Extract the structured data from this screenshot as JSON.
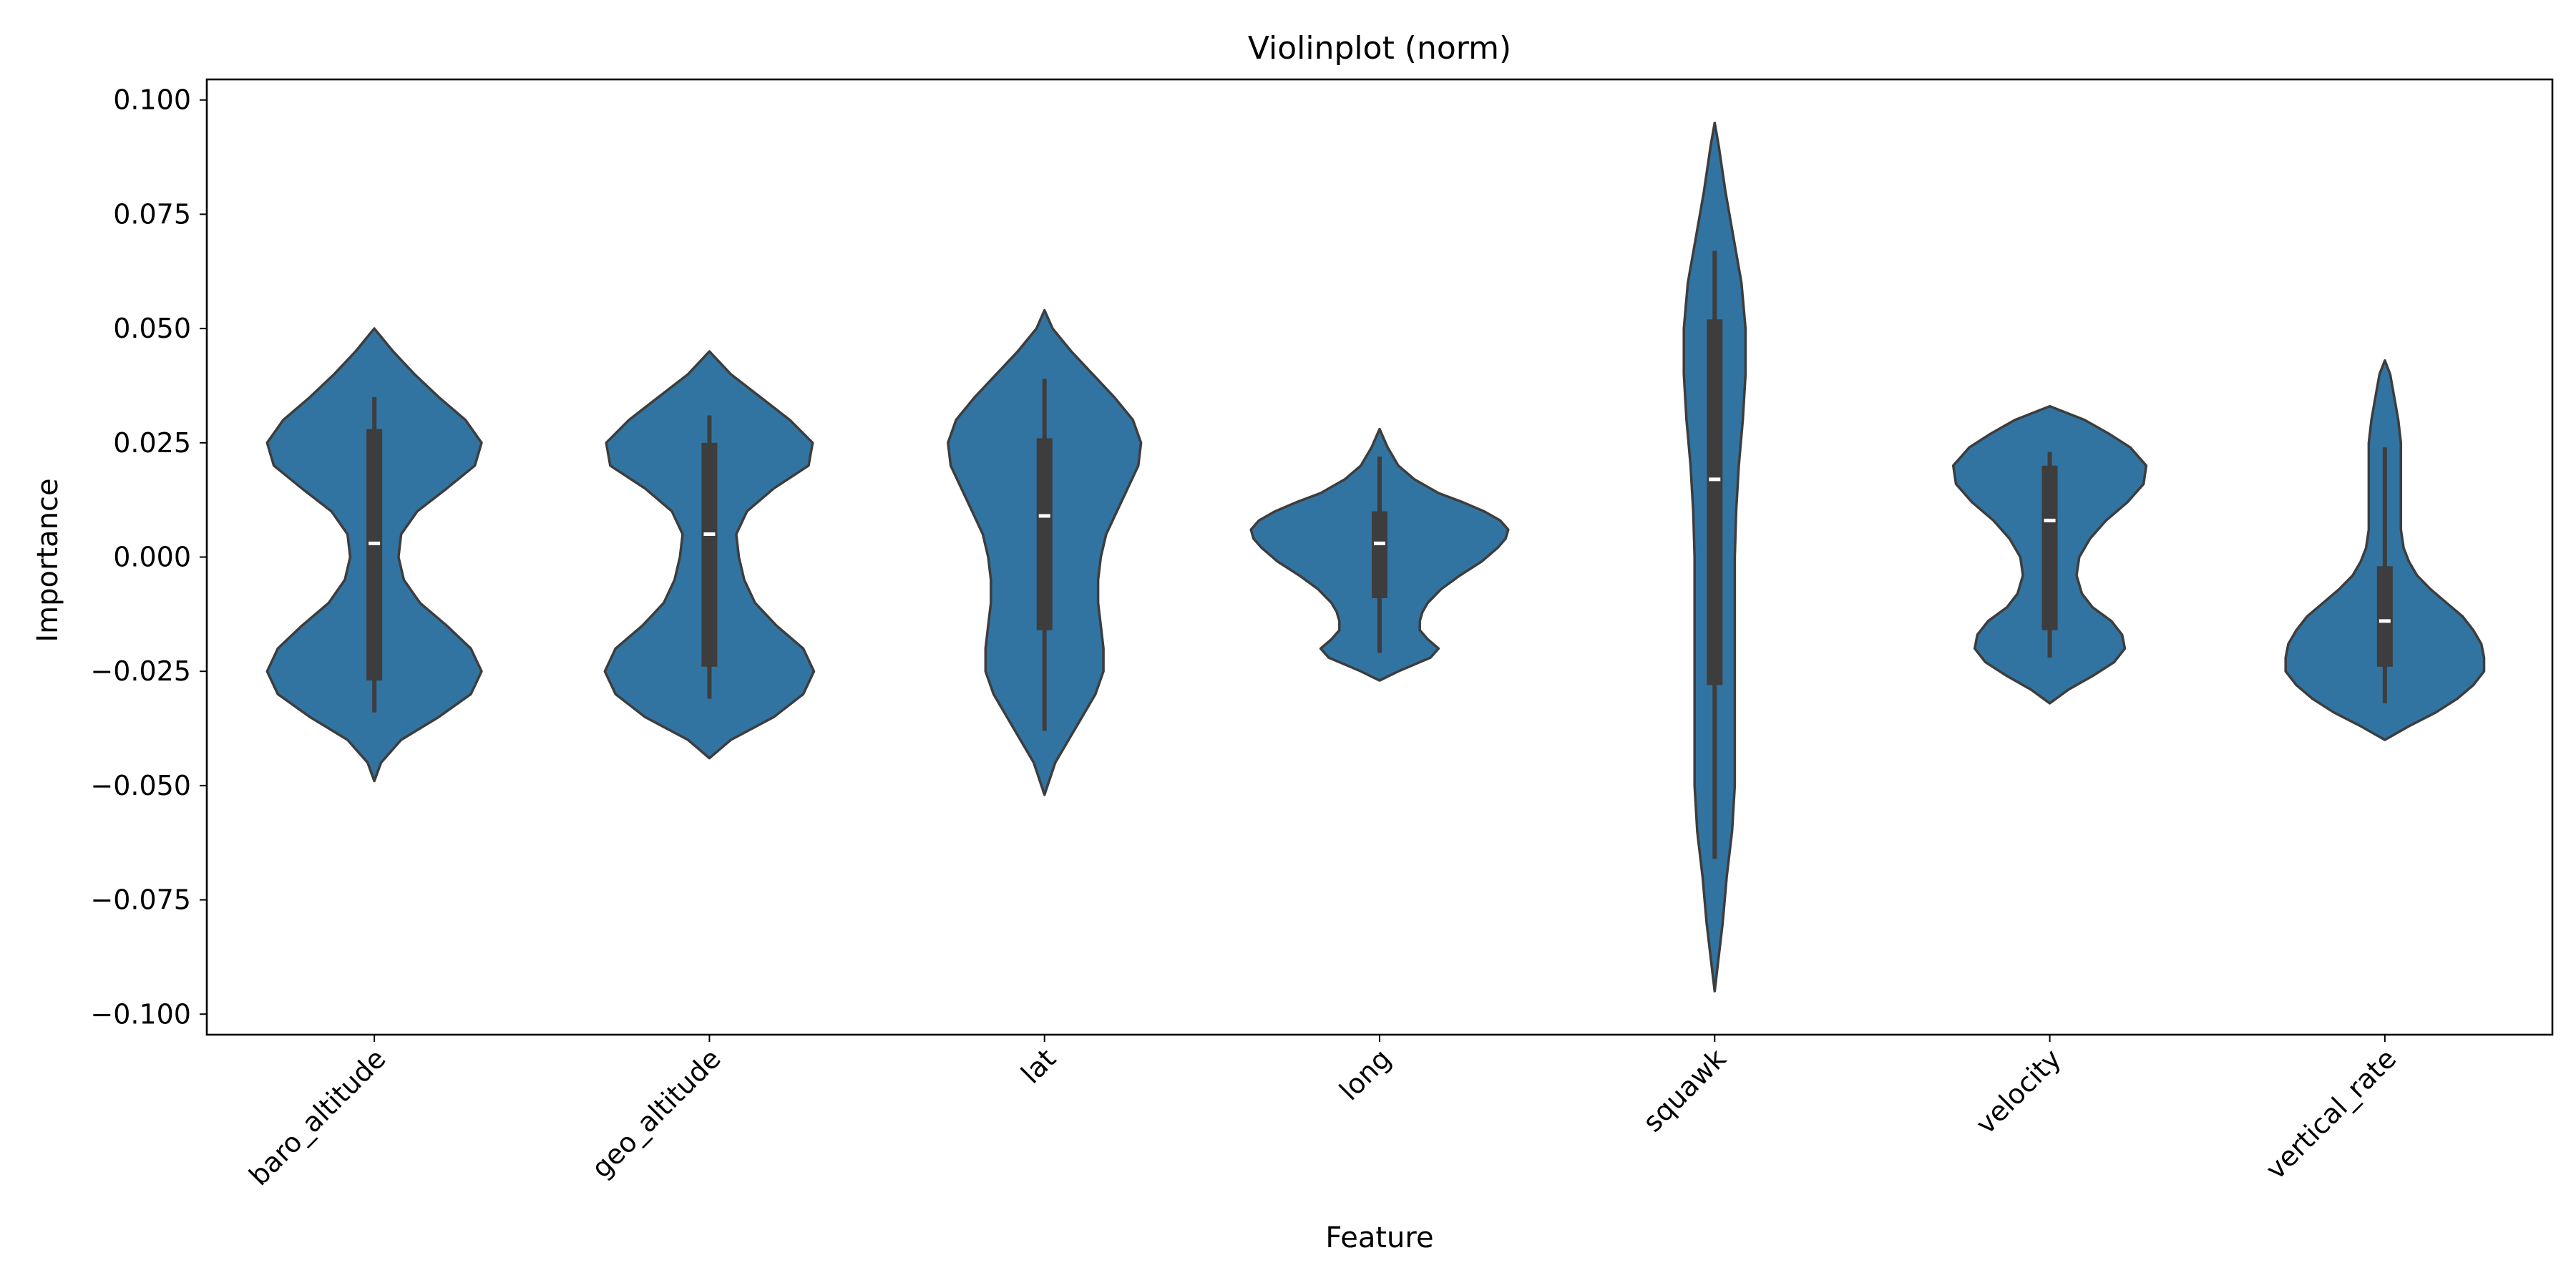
{
  "chart_data": {
    "type": "violin",
    "title": "Violinplot (norm)",
    "xlabel": "Feature",
    "ylabel": "Importance",
    "ylim": [
      -0.1045,
      0.1045
    ],
    "yticks": [
      0.1,
      0.075,
      0.05,
      0.025,
      0.0,
      -0.025,
      -0.05,
      -0.075,
      -0.1
    ],
    "ytick_labels": [
      "0.100",
      "0.075",
      "0.050",
      "0.025",
      "0.000",
      "−0.025",
      "−0.050",
      "−0.075",
      "−0.100"
    ],
    "categories": [
      "baro_altitude",
      "geo_altitude",
      "lat",
      "long",
      "squawk",
      "velocity",
      "vertical_rate"
    ],
    "fill_color": "#3274a1",
    "edge_color": "#3d3d3d",
    "violins": [
      {
        "name": "baro_altitude",
        "median": 0.003,
        "q1": -0.027,
        "q3": 0.028,
        "whisker_low": -0.034,
        "whisker_high": 0.035,
        "min": -0.049,
        "max": 0.05,
        "profile": [
          [
            -0.049,
            0
          ],
          [
            -0.045,
            0.05
          ],
          [
            -0.04,
            0.2
          ],
          [
            -0.035,
            0.48
          ],
          [
            -0.03,
            0.72
          ],
          [
            -0.025,
            0.8
          ],
          [
            -0.02,
            0.72
          ],
          [
            -0.015,
            0.54
          ],
          [
            -0.01,
            0.34
          ],
          [
            -0.005,
            0.22
          ],
          [
            0,
            0.18
          ],
          [
            0.005,
            0.2
          ],
          [
            0.01,
            0.32
          ],
          [
            0.015,
            0.54
          ],
          [
            0.02,
            0.75
          ],
          [
            0.025,
            0.8
          ],
          [
            0.03,
            0.68
          ],
          [
            0.035,
            0.48
          ],
          [
            0.04,
            0.3
          ],
          [
            0.045,
            0.14
          ],
          [
            0.05,
            0
          ]
        ]
      },
      {
        "name": "geo_altitude",
        "median": 0.005,
        "q1": -0.024,
        "q3": 0.025,
        "whisker_low": -0.031,
        "whisker_high": 0.031,
        "min": -0.044,
        "max": 0.045,
        "profile": [
          [
            -0.044,
            0
          ],
          [
            -0.04,
            0.16
          ],
          [
            -0.035,
            0.48
          ],
          [
            -0.03,
            0.7
          ],
          [
            -0.025,
            0.78
          ],
          [
            -0.02,
            0.7
          ],
          [
            -0.015,
            0.5
          ],
          [
            -0.01,
            0.34
          ],
          [
            -0.005,
            0.26
          ],
          [
            0,
            0.22
          ],
          [
            0.005,
            0.2
          ],
          [
            0.01,
            0.28
          ],
          [
            0.015,
            0.48
          ],
          [
            0.02,
            0.74
          ],
          [
            0.025,
            0.77
          ],
          [
            0.03,
            0.6
          ],
          [
            0.035,
            0.38
          ],
          [
            0.04,
            0.16
          ],
          [
            0.045,
            0
          ]
        ]
      },
      {
        "name": "lat",
        "median": 0.009,
        "q1": -0.016,
        "q3": 0.026,
        "whisker_low": -0.038,
        "whisker_high": 0.039,
        "min": -0.052,
        "max": 0.054,
        "profile": [
          [
            -0.052,
            0
          ],
          [
            -0.045,
            0.08
          ],
          [
            -0.04,
            0.18
          ],
          [
            -0.035,
            0.28
          ],
          [
            -0.03,
            0.38
          ],
          [
            -0.025,
            0.44
          ],
          [
            -0.02,
            0.44
          ],
          [
            -0.015,
            0.42
          ],
          [
            -0.01,
            0.4
          ],
          [
            -0.005,
            0.4
          ],
          [
            0,
            0.42
          ],
          [
            0.005,
            0.46
          ],
          [
            0.01,
            0.54
          ],
          [
            0.015,
            0.62
          ],
          [
            0.02,
            0.7
          ],
          [
            0.025,
            0.72
          ],
          [
            0.03,
            0.66
          ],
          [
            0.035,
            0.52
          ],
          [
            0.04,
            0.36
          ],
          [
            0.045,
            0.2
          ],
          [
            0.05,
            0.06
          ],
          [
            0.054,
            0
          ]
        ]
      },
      {
        "name": "long",
        "median": 0.003,
        "q1": -0.009,
        "q3": 0.01,
        "whisker_low": -0.021,
        "whisker_high": 0.022,
        "min": -0.027,
        "max": 0.028,
        "profile": [
          [
            -0.027,
            0
          ],
          [
            -0.025,
            0.14
          ],
          [
            -0.022,
            0.38
          ],
          [
            -0.02,
            0.44
          ],
          [
            -0.018,
            0.36
          ],
          [
            -0.016,
            0.3
          ],
          [
            -0.014,
            0.3
          ],
          [
            -0.012,
            0.32
          ],
          [
            -0.01,
            0.36
          ],
          [
            -0.007,
            0.46
          ],
          [
            -0.004,
            0.6
          ],
          [
            -0.001,
            0.76
          ],
          [
            0.002,
            0.88
          ],
          [
            0.004,
            0.94
          ],
          [
            0.006,
            0.96
          ],
          [
            0.008,
            0.9
          ],
          [
            0.01,
            0.78
          ],
          [
            0.012,
            0.62
          ],
          [
            0.014,
            0.44
          ],
          [
            0.017,
            0.26
          ],
          [
            0.02,
            0.14
          ],
          [
            0.024,
            0.06
          ],
          [
            0.028,
            0
          ]
        ]
      },
      {
        "name": "squawk",
        "median": 0.017,
        "q1": -0.028,
        "q3": 0.052,
        "whisker_low": -0.066,
        "whisker_high": 0.067,
        "min": -0.095,
        "max": 0.095,
        "profile": [
          [
            -0.095,
            0
          ],
          [
            -0.09,
            0.02
          ],
          [
            -0.08,
            0.06
          ],
          [
            -0.07,
            0.09
          ],
          [
            -0.06,
            0.13
          ],
          [
            -0.05,
            0.15
          ],
          [
            -0.04,
            0.15
          ],
          [
            -0.03,
            0.15
          ],
          [
            -0.02,
            0.15
          ],
          [
            -0.01,
            0.15
          ],
          [
            0,
            0.15
          ],
          [
            0.01,
            0.16
          ],
          [
            0.02,
            0.18
          ],
          [
            0.03,
            0.21
          ],
          [
            0.04,
            0.23
          ],
          [
            0.05,
            0.23
          ],
          [
            0.06,
            0.2
          ],
          [
            0.07,
            0.14
          ],
          [
            0.08,
            0.08
          ],
          [
            0.09,
            0.03
          ],
          [
            0.095,
            0
          ]
        ]
      },
      {
        "name": "velocity",
        "median": 0.008,
        "q1": -0.016,
        "q3": 0.02,
        "whisker_low": -0.022,
        "whisker_high": 0.023,
        "min": -0.032,
        "max": 0.033,
        "profile": [
          [
            -0.032,
            0
          ],
          [
            -0.029,
            0.14
          ],
          [
            -0.026,
            0.32
          ],
          [
            -0.023,
            0.48
          ],
          [
            -0.02,
            0.56
          ],
          [
            -0.017,
            0.54
          ],
          [
            -0.014,
            0.46
          ],
          [
            -0.011,
            0.32
          ],
          [
            -0.008,
            0.24
          ],
          [
            -0.004,
            0.2
          ],
          [
            0,
            0.22
          ],
          [
            0.004,
            0.3
          ],
          [
            0.008,
            0.42
          ],
          [
            0.012,
            0.58
          ],
          [
            0.016,
            0.7
          ],
          [
            0.02,
            0.72
          ],
          [
            0.024,
            0.6
          ],
          [
            0.027,
            0.44
          ],
          [
            0.03,
            0.26
          ],
          [
            0.033,
            0
          ]
        ]
      },
      {
        "name": "vertical_rate",
        "median": -0.014,
        "q1": -0.024,
        "q3": -0.002,
        "whisker_low": -0.032,
        "whisker_high": 0.024,
        "min": -0.04,
        "max": 0.043,
        "profile": [
          [
            -0.04,
            0
          ],
          [
            -0.037,
            0.18
          ],
          [
            -0.034,
            0.38
          ],
          [
            -0.031,
            0.54
          ],
          [
            -0.028,
            0.66
          ],
          [
            -0.025,
            0.74
          ],
          [
            -0.022,
            0.74
          ],
          [
            -0.019,
            0.72
          ],
          [
            -0.016,
            0.66
          ],
          [
            -0.013,
            0.58
          ],
          [
            -0.01,
            0.46
          ],
          [
            -0.007,
            0.34
          ],
          [
            -0.004,
            0.24
          ],
          [
            -0.001,
            0.18
          ],
          [
            0.002,
            0.14
          ],
          [
            0.006,
            0.12
          ],
          [
            0.01,
            0.12
          ],
          [
            0.015,
            0.12
          ],
          [
            0.02,
            0.12
          ],
          [
            0.025,
            0.12
          ],
          [
            0.03,
            0.1
          ],
          [
            0.035,
            0.07
          ],
          [
            0.04,
            0.04
          ],
          [
            0.043,
            0
          ]
        ]
      }
    ]
  }
}
